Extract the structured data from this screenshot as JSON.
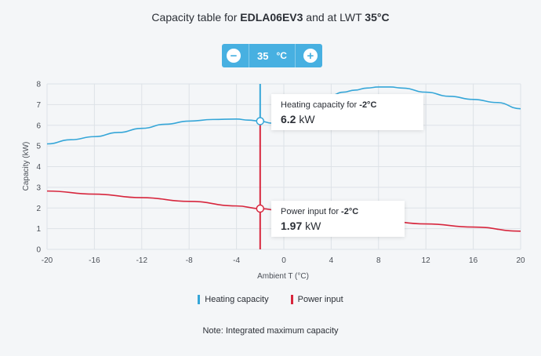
{
  "header": {
    "title_prefix": "Capacity table for ",
    "model": "EDLA06EV3",
    "title_middle": " and at LWT ",
    "lwt": "35°C"
  },
  "stepper": {
    "value": "35",
    "unit": "°C",
    "minus_icon": "minus-icon",
    "plus_icon": "plus-icon"
  },
  "tooltips": {
    "heating": {
      "label": "Heating capacity for ",
      "temp": "-2°C",
      "value": "6.2",
      "unit": "kW"
    },
    "power": {
      "label": "Power input for ",
      "temp": "-2°C",
      "value": "1.97",
      "unit": "kW"
    }
  },
  "legend": {
    "heating": "Heating capacity",
    "power": "Power input"
  },
  "note": "Note: Integrated maximum capacity",
  "colors": {
    "heating": "#35a6d8",
    "power": "#d7263d",
    "stepper": "#47b0e1"
  },
  "chart_data": {
    "type": "line",
    "xlabel": "Ambient T (°C)",
    "ylabel": "Capacity (kW)",
    "xlim": [
      -20,
      20
    ],
    "ylim": [
      0,
      8
    ],
    "xticks": [
      -20,
      -16,
      -12,
      -8,
      -4,
      0,
      4,
      8,
      12,
      16,
      20
    ],
    "yticks": [
      0,
      1,
      2,
      3,
      4,
      5,
      6,
      7,
      8
    ],
    "grid": true,
    "crosshair_x": -2,
    "series": [
      {
        "name": "Heating capacity",
        "x": [
          -20,
          -18,
          -16,
          -14,
          -12,
          -10,
          -8,
          -6,
          -4,
          -3,
          -2,
          -1,
          0,
          1,
          2,
          3,
          4,
          5,
          6,
          7,
          8,
          9,
          10,
          12,
          14,
          16,
          18,
          20
        ],
        "values": [
          5.1,
          5.3,
          5.45,
          5.65,
          5.85,
          6.05,
          6.2,
          6.28,
          6.3,
          6.25,
          6.2,
          6.1,
          6.25,
          6.5,
          6.9,
          7.2,
          7.45,
          7.6,
          7.7,
          7.8,
          7.85,
          7.85,
          7.8,
          7.6,
          7.4,
          7.25,
          7.1,
          6.8
        ]
      },
      {
        "name": "Power input",
        "x": [
          -20,
          -16,
          -12,
          -8,
          -4,
          -2,
          0,
          4,
          8,
          12,
          16,
          20
        ],
        "values": [
          2.82,
          2.67,
          2.5,
          2.32,
          2.1,
          1.97,
          1.85,
          1.6,
          1.4,
          1.23,
          1.08,
          0.88
        ]
      }
    ]
  }
}
